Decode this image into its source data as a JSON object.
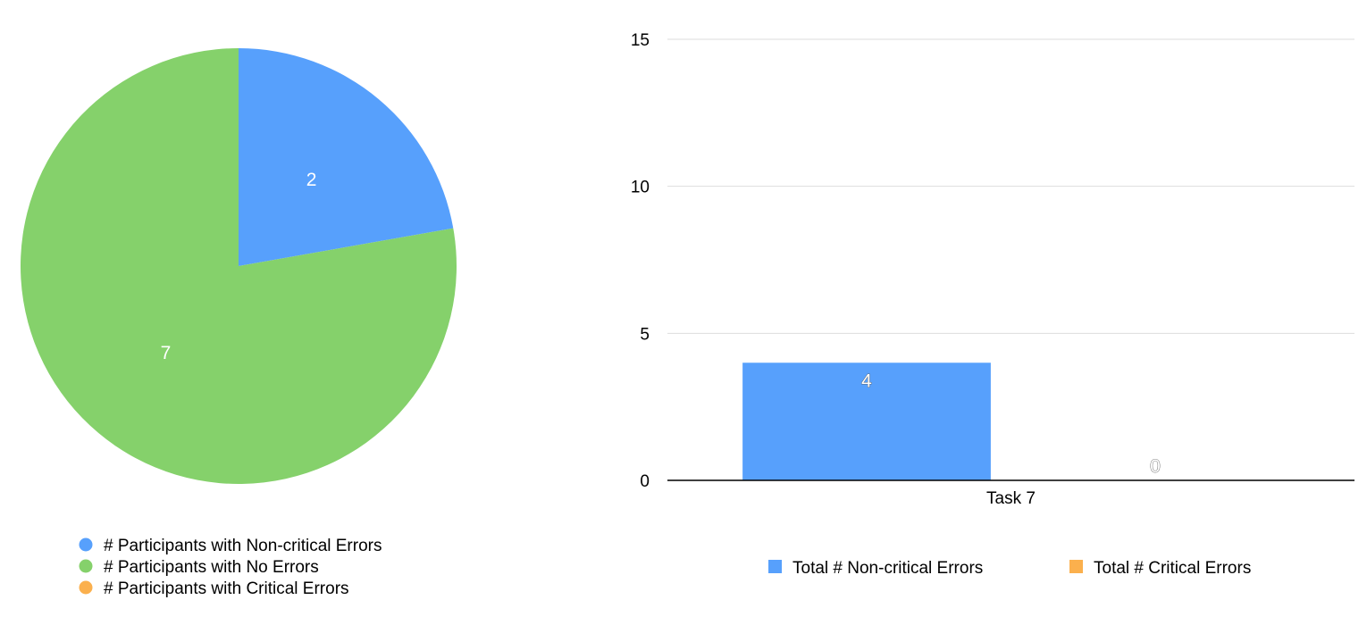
{
  "colors": {
    "blue": "#57a0fc",
    "green": "#85d16b",
    "orange": "#fbb04d",
    "grid": "#dddddd",
    "axis": "#000000"
  },
  "chart_data": [
    {
      "type": "pie",
      "title": "",
      "slices": [
        {
          "label": "# Participants with Non-critical Errors",
          "value": 2,
          "color": "#57a0fc",
          "data_label": "2"
        },
        {
          "label": "# Participants with No Errors",
          "value": 7,
          "color": "#85d16b",
          "data_label": "7"
        },
        {
          "label": "# Participants with Critical Errors",
          "value": 0,
          "color": "#fbb04d",
          "data_label": ""
        }
      ],
      "legend_position": "bottom-left"
    },
    {
      "type": "bar",
      "title": "",
      "xlabel": "",
      "ylabel": "",
      "categories": [
        "Task 7"
      ],
      "series": [
        {
          "name": "Total # Non-critical Errors",
          "values": [
            4
          ],
          "color": "#57a0fc",
          "data_labels": [
            "4"
          ]
        },
        {
          "name": "Total # Critical Errors",
          "values": [
            0
          ],
          "color": "#fbb04d",
          "data_labels": [
            "0"
          ]
        }
      ],
      "ylim": [
        0,
        15
      ],
      "yticks": [
        0,
        5,
        10,
        15
      ],
      "ytick_labels": [
        "0",
        "5",
        "10",
        "15"
      ],
      "grid": true,
      "legend_position": "bottom"
    }
  ]
}
